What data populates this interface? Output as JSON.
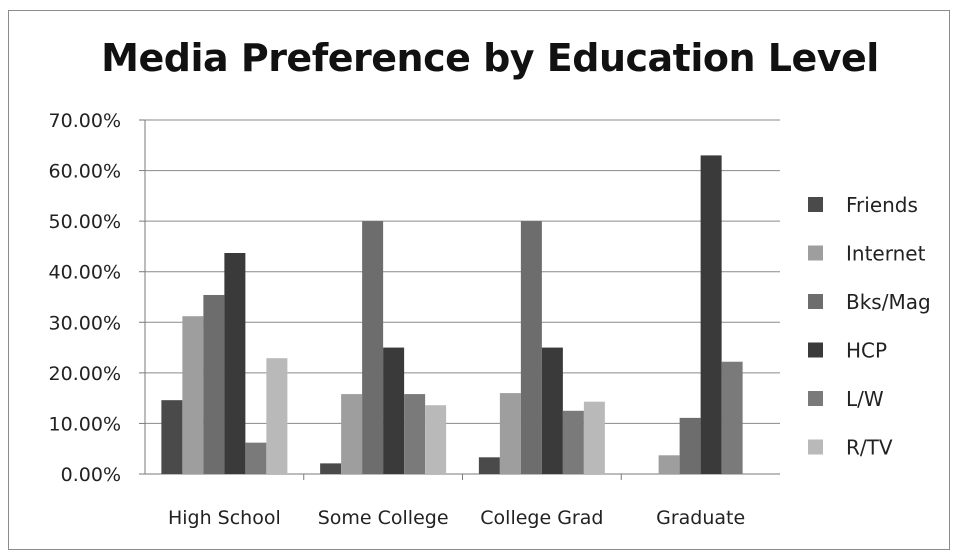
{
  "chart_data": {
    "type": "bar",
    "title": "Media Preference by Education Level",
    "xlabel": "",
    "ylabel": "",
    "categories": [
      "High School",
      "Some College",
      "College Grad",
      "Graduate"
    ],
    "ylim": [
      0,
      0.7
    ],
    "y_ticks": [
      "0.00%",
      "10.00%",
      "20.00%",
      "30.00%",
      "40.00%",
      "50.00%",
      "60.00%",
      "70.00%"
    ],
    "grid": true,
    "legend_position": "right",
    "series": [
      {
        "name": "Friends",
        "color": "#4a4a4a",
        "values": [
          0.146,
          0.021,
          0.033,
          0.0
        ]
      },
      {
        "name": "Internet",
        "color": "#9e9e9e",
        "values": [
          0.312,
          0.158,
          0.16,
          0.037
        ]
      },
      {
        "name": "Bks/Mag",
        "color": "#6d6d6d",
        "values": [
          0.354,
          0.5,
          0.5,
          0.111
        ]
      },
      {
        "name": "HCP",
        "color": "#3a3a3a",
        "values": [
          0.437,
          0.25,
          0.25,
          0.63
        ]
      },
      {
        "name": "L/W",
        "color": "#7a7a7a",
        "values": [
          0.062,
          0.158,
          0.125,
          0.222
        ]
      },
      {
        "name": "R/TV",
        "color": "#b9b9b9",
        "values": [
          0.229,
          0.136,
          0.143,
          0.0
        ]
      }
    ]
  }
}
